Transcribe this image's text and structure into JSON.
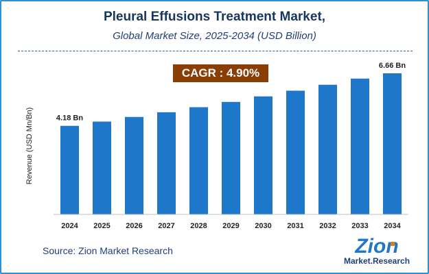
{
  "chart_data": {
    "type": "bar",
    "title": "Pleural Effusions Treatment Market,",
    "subtitle": "Global Market Size, 2025-2034 (USD Billion)",
    "ylabel": "Revenue (USD Mn/Bn)",
    "xlabel": "",
    "categories": [
      "2024",
      "2025",
      "2026",
      "2027",
      "2028",
      "2029",
      "2030",
      "2031",
      "2032",
      "2033",
      "2034"
    ],
    "values": [
      4.18,
      4.38,
      4.6,
      4.82,
      5.06,
      5.31,
      5.57,
      5.84,
      6.12,
      6.41,
      6.66
    ],
    "data_labels": [
      {
        "index": 0,
        "text": "4.18 Bn"
      },
      {
        "index": 10,
        "text": "6.66 Bn"
      }
    ],
    "ylim": [
      0,
      7
    ],
    "grid": false,
    "bar_color": "#1f77c9"
  },
  "annotation": {
    "cagr": "CAGR : 4.90%",
    "color": "#8b3d06"
  },
  "source": "Source: Zion Market Research",
  "logo": {
    "top": "Zion",
    "bottom": "Market.Research"
  }
}
